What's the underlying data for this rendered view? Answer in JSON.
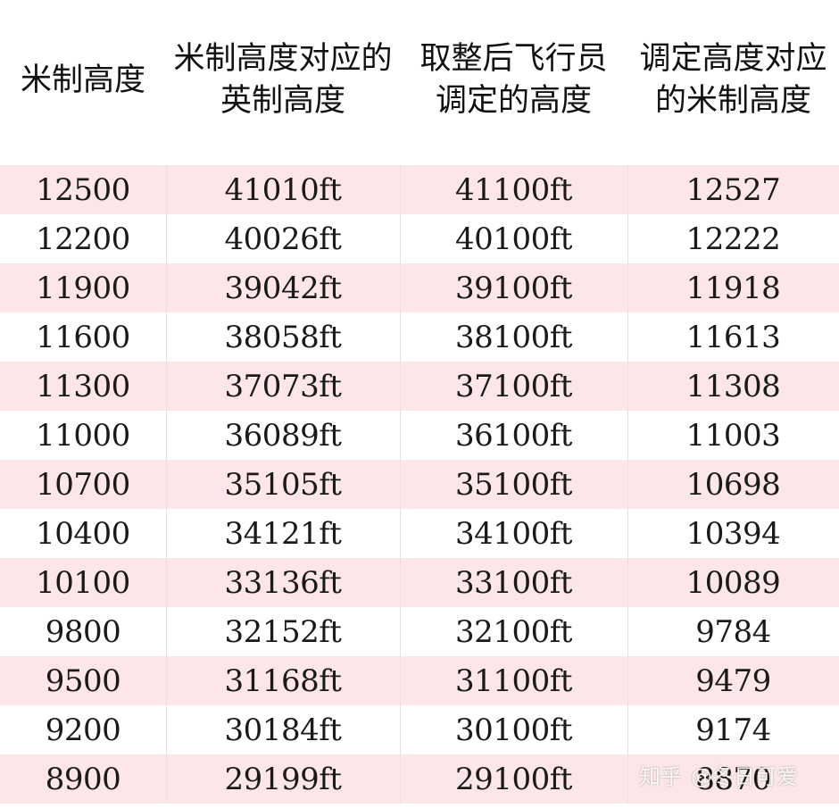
{
  "headers": [
    "米制高度",
    "米制高度对应的\n英制高度",
    "取整后飞行员\n调定的高度",
    "调定高度对应\n的米制高度"
  ],
  "rows": [
    [
      "12500",
      "41010ft",
      "41100ft",
      "12527"
    ],
    [
      "12200",
      "40026ft",
      "40100ft",
      "12222"
    ],
    [
      "11900",
      "39042ft",
      "39100ft",
      "11918"
    ],
    [
      "11600",
      "38058ft",
      "38100ft",
      "11613"
    ],
    [
      "11300",
      "37073ft",
      "37100ft",
      "11308"
    ],
    [
      "11000",
      "36089ft",
      "36100ft",
      "11003"
    ],
    [
      "10700",
      "35105ft",
      "35100ft",
      "10698"
    ],
    [
      "10400",
      "34121ft",
      "34100ft",
      "10394"
    ],
    [
      "10100",
      "33136ft",
      "33100ft",
      "10089"
    ],
    [
      "9800",
      "32152ft",
      "32100ft",
      "9784"
    ],
    [
      "9500",
      "31168ft",
      "31100ft",
      "9479"
    ],
    [
      "9200",
      "30184ft",
      "30100ft",
      "9174"
    ],
    [
      "8900",
      "29199ft",
      "29100ft",
      "8870"
    ]
  ],
  "watermark": {
    "site": "知乎",
    "author": "@冬日可爱"
  },
  "colors": {
    "odd_row": "#fde6e7",
    "even_row": "#ffffff",
    "text": "#1a1a1a"
  }
}
